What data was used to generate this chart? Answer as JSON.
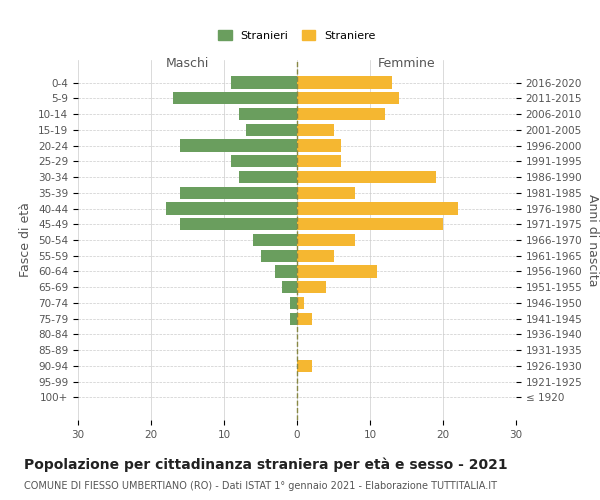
{
  "age_groups": [
    "0-4",
    "5-9",
    "10-14",
    "15-19",
    "20-24",
    "25-29",
    "30-34",
    "35-39",
    "40-44",
    "45-49",
    "50-54",
    "55-59",
    "60-64",
    "65-69",
    "70-74",
    "75-79",
    "80-84",
    "85-89",
    "90-94",
    "95-99",
    "100+"
  ],
  "birth_years": [
    "2016-2020",
    "2011-2015",
    "2006-2010",
    "2001-2005",
    "1996-2000",
    "1991-1995",
    "1986-1990",
    "1981-1985",
    "1976-1980",
    "1971-1975",
    "1966-1970",
    "1961-1965",
    "1956-1960",
    "1951-1955",
    "1946-1950",
    "1941-1945",
    "1936-1940",
    "1931-1935",
    "1926-1930",
    "1921-1925",
    "≤ 1920"
  ],
  "males": [
    9,
    17,
    8,
    7,
    16,
    9,
    8,
    16,
    18,
    16,
    6,
    5,
    3,
    2,
    1,
    1,
    0,
    0,
    0,
    0,
    0
  ],
  "females": [
    13,
    14,
    12,
    5,
    6,
    6,
    19,
    8,
    22,
    20,
    8,
    5,
    11,
    4,
    1,
    2,
    0,
    0,
    2,
    0,
    0
  ],
  "male_color": "#6a9e5e",
  "female_color": "#f5b731",
  "background_color": "#ffffff",
  "grid_color": "#cccccc",
  "title": "Popolazione per cittadinanza straniera per età e sesso - 2021",
  "subtitle": "COMUNE DI FIESSO UMBERTIANO (RO) - Dati ISTAT 1° gennaio 2021 - Elaborazione TUTTITALIA.IT",
  "xlabel_left": "Maschi",
  "xlabel_right": "Femmine",
  "ylabel_left": "Fasce di età",
  "ylabel_right": "Anni di nascita",
  "legend_male": "Stranieri",
  "legend_female": "Straniere",
  "xlim": 30,
  "title_fontsize": 10,
  "subtitle_fontsize": 7,
  "axis_label_fontsize": 9,
  "tick_fontsize": 7.5
}
